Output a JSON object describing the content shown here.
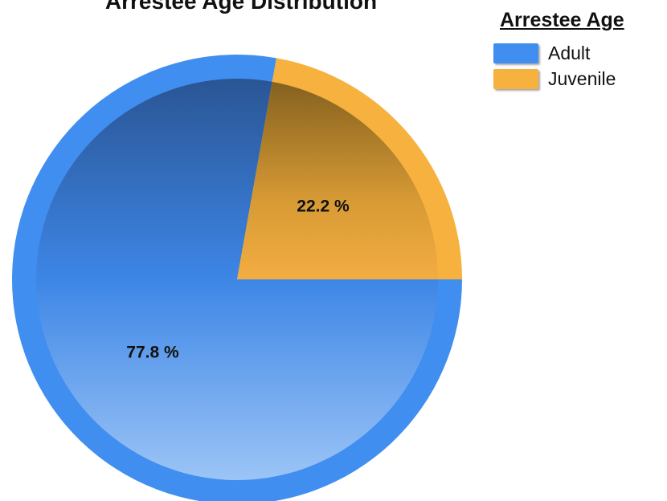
{
  "chart_data": {
    "type": "pie",
    "title": "Arrestee Age Distribution",
    "legend_title": "Arrestee Age",
    "legend_position": "top-right",
    "slices": [
      {
        "name": "Adult",
        "value": 77.8,
        "label": "77.8 %",
        "color": "#3f8ef0"
      },
      {
        "name": "Juvenile",
        "value": 22.2,
        "label": "22.2 %",
        "color": "#f6b13f"
      }
    ]
  }
}
